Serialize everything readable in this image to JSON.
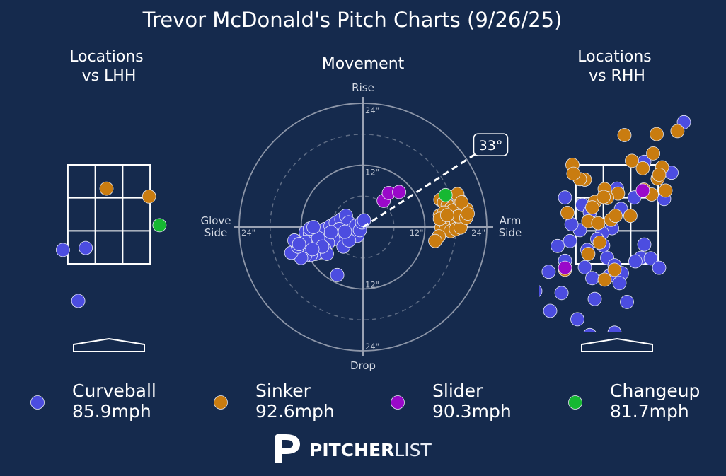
{
  "title": "Trevor McDonald's Pitch Charts (9/26/25)",
  "colors": {
    "background": "#152a4d",
    "curveball": "#4c4de0",
    "sinker": "#c97c10",
    "slider": "#9a09c9",
    "changeup": "#16b832",
    "grid": "#9aa2b3",
    "zone": "#ffffff"
  },
  "chart_data": [
    {
      "type": "scatter",
      "name": "locations-vs-lhh",
      "title": "Locations\nvs LHH",
      "series": [
        {
          "pitch": "Curveball",
          "points": [
            [
              -0.62,
              0.75
            ],
            [
              -0.93,
              1.78
            ],
            [
              -0.47,
              1.82
            ]
          ]
        },
        {
          "pitch": "Sinker",
          "points": [
            [
              -0.05,
              3.02
            ],
            [
              0.81,
              2.86
            ]
          ]
        },
        {
          "pitch": "Changeup",
          "points": [
            [
              1.02,
              2.28
            ]
          ]
        }
      ]
    },
    {
      "type": "scatter",
      "name": "movement",
      "title": "Movement",
      "axis_labels": {
        "top": "Rise",
        "bottom": "Drop",
        "left": "Glove\nSide",
        "right": "Arm\nSide"
      },
      "ring_labels": [
        "24\"",
        "12\"",
        "12\"",
        "24\"",
        "12\"",
        "24\"",
        "12\"",
        "24\""
      ],
      "arm_angle_label": "33°",
      "arm_angle_deg": 33,
      "rlim": 24,
      "series": [
        {
          "pitch": "Curveball",
          "points": [
            [
              -11.1,
              -1.0
            ],
            [
              -10.3,
              -1.3
            ],
            [
              -9.2,
              -1.5
            ],
            [
              -8.3,
              -1.5
            ],
            [
              -7.4,
              -0.4
            ],
            [
              -6.3,
              0.2
            ],
            [
              -5.3,
              0.8
            ],
            [
              -4.2,
              1.5
            ],
            [
              -3.3,
              2.2
            ],
            [
              -2.8,
              0.9
            ],
            [
              -2.1,
              -0.5
            ],
            [
              -1.3,
              0.3
            ],
            [
              -1.1,
              -1.7
            ],
            [
              -0.6,
              -0.6
            ],
            [
              -0.2,
              0.9
            ],
            [
              0.2,
              1.3
            ],
            [
              -5.0,
              -2.0
            ],
            [
              -5.8,
              -2.4
            ],
            [
              -6.8,
              -3.1
            ],
            [
              -7.5,
              -4.2
            ],
            [
              -8.3,
              -4.9
            ],
            [
              -9.2,
              -5.2
            ],
            [
              -10.1,
              -5.4
            ],
            [
              -11.2,
              -5.5
            ],
            [
              -12.0,
              -6.0
            ],
            [
              -13.9,
              -5.0
            ],
            [
              -12.6,
              -3.8
            ],
            [
              -13.3,
              -2.6
            ],
            [
              -11.0,
              -3.2
            ],
            [
              -9.4,
              -3.5
            ],
            [
              -8.7,
              -2.1
            ],
            [
              -10.3,
              -0.3
            ],
            [
              -7.0,
              -5.2
            ],
            [
              -5.0,
              -9.3
            ],
            [
              -3.8,
              -3.8
            ],
            [
              -2.7,
              -2.6
            ],
            [
              -4.6,
              -0.4
            ],
            [
              -3.5,
              -0.9
            ],
            [
              -11.2,
              -2.9
            ],
            [
              -7.9,
              -3.8
            ],
            [
              -9.8,
              -4.3
            ],
            [
              -6.2,
              -1.0
            ],
            [
              -9.6,
              0.0
            ],
            [
              -12.4,
              -3.3
            ]
          ]
        },
        {
          "pitch": "Sinker",
          "points": [
            [
              15.0,
              5.3
            ],
            [
              15.7,
              4.8
            ],
            [
              16.4,
              4.2
            ],
            [
              17.1,
              3.6
            ],
            [
              18.0,
              3.4
            ],
            [
              19.0,
              3.3
            ],
            [
              20.1,
              3.4
            ],
            [
              14.9,
              2.3
            ],
            [
              15.6,
              1.8
            ],
            [
              16.5,
              1.4
            ],
            [
              17.2,
              1.0
            ],
            [
              18.1,
              0.8
            ],
            [
              19.1,
              0.6
            ],
            [
              15.2,
              -0.1
            ],
            [
              16.0,
              -0.6
            ],
            [
              17.0,
              -0.8
            ],
            [
              18.0,
              -0.4
            ],
            [
              18.9,
              -0.1
            ],
            [
              14.7,
              -1.8
            ],
            [
              14.0,
              -2.7
            ],
            [
              17.4,
              3.2
            ],
            [
              18.7,
              5.3
            ],
            [
              18.3,
              6.4
            ],
            [
              15.7,
              2.8
            ],
            [
              18.5,
              2.1
            ],
            [
              20.0,
              1.8
            ],
            [
              14.9,
              1.6
            ],
            [
              19.1,
              4.8
            ],
            [
              20.3,
              2.6
            ],
            [
              16.3,
              2.3
            ]
          ]
        },
        {
          "pitch": "Slider",
          "points": [
            [
              4.0,
              5.1
            ],
            [
              5.0,
              6.6
            ],
            [
              7.0,
              6.8
            ]
          ]
        },
        {
          "pitch": "Changeup",
          "points": [
            [
              16.0,
              6.2
            ]
          ]
        }
      ]
    },
    {
      "type": "scatter",
      "name": "locations-vs-rhh",
      "title": "Locations\nvs RHH",
      "series": [
        {
          "pitch": "Curveball",
          "points": [
            [
              1.35,
              4.36
            ],
            [
              -1.05,
              2.84
            ],
            [
              -0.7,
              2.69
            ],
            [
              -0.55,
              2.54
            ],
            [
              0.0,
              3.02
            ],
            [
              0.35,
              2.84
            ],
            [
              0.95,
              2.81
            ],
            [
              1.1,
              3.34
            ],
            [
              0.55,
              3.56
            ],
            [
              0.08,
              2.61
            ],
            [
              -0.1,
              2.22
            ],
            [
              -0.3,
              2.12
            ],
            [
              -0.75,
              2.18
            ],
            [
              -0.95,
              1.96
            ],
            [
              -1.2,
              1.86
            ],
            [
              -0.6,
              1.78
            ],
            [
              -0.65,
              1.43
            ],
            [
              -0.2,
              1.62
            ],
            [
              -0.5,
              1.21
            ],
            [
              -0.15,
              1.26
            ],
            [
              0.1,
              1.31
            ],
            [
              -0.05,
              1.47
            ],
            [
              0.48,
              1.62
            ],
            [
              0.55,
              1.89
            ],
            [
              0.05,
              1.11
            ],
            [
              0.2,
              0.73
            ],
            [
              -0.45,
              0.79
            ],
            [
              -0.8,
              0.38
            ],
            [
              -0.55,
              0.06
            ],
            [
              -0.05,
              0.11
            ],
            [
              -1.38,
              1.34
            ],
            [
              0.37,
              1.55
            ],
            [
              -0.4,
              2.0
            ],
            [
              -1.05,
              1.56
            ],
            [
              0.68,
              1.61
            ],
            [
              -1.65,
              0.95
            ],
            [
              -1.35,
              0.55
            ],
            [
              -1.12,
              0.91
            ],
            [
              0.85,
              1.42
            ],
            [
              -0.28,
              1.87
            ],
            [
              -0.92,
              2.3
            ]
          ]
        },
        {
          "pitch": "Sinker",
          "points": [
            [
              0.15,
              4.1
            ],
            [
              1.22,
              4.18
            ],
            [
              0.3,
              3.58
            ],
            [
              0.73,
              3.73
            ],
            [
              0.91,
              3.45
            ],
            [
              0.82,
              3.22
            ],
            [
              0.98,
              2.98
            ],
            [
              0.54,
              3.0
            ],
            [
              -0.9,
              3.5
            ],
            [
              -0.65,
              3.2
            ],
            [
              -0.25,
              3.01
            ],
            [
              -0.45,
              2.75
            ],
            [
              -1.0,
              2.53
            ],
            [
              -0.58,
              2.36
            ],
            [
              -0.38,
              2.32
            ],
            [
              -0.12,
              2.39
            ],
            [
              0.02,
              2.92
            ],
            [
              -0.2,
              2.83
            ],
            [
              -0.5,
              2.64
            ],
            [
              -0.35,
              1.93
            ],
            [
              -0.58,
              1.7
            ],
            [
              -1.05,
              1.38
            ],
            [
              -0.05,
              1.38
            ],
            [
              -0.25,
              1.18
            ],
            [
              -0.75,
              3.21
            ],
            [
              0.27,
              2.47
            ],
            [
              -0.03,
              2.47
            ],
            [
              0.7,
              2.9
            ],
            [
              0.52,
              3.43
            ],
            [
              -0.27,
              2.85
            ],
            [
              -0.88,
              3.32
            ],
            [
              0.8,
              4.12
            ],
            [
              0.85,
              3.3
            ]
          ]
        },
        {
          "pitch": "Slider",
          "points": [
            [
              -1.75,
              1.01
            ],
            [
              -1.85,
              0.86
            ],
            [
              -1.05,
              1.42
            ],
            [
              0.52,
              2.98
            ]
          ]
        }
      ]
    }
  ],
  "zone": {
    "x": [
      -0.83,
      0.83
    ],
    "z": [
      1.5,
      3.5
    ]
  },
  "legend": [
    {
      "pitch": "Curveball",
      "speed": "85.9mph",
      "color": "#4c4de0"
    },
    {
      "pitch": "Sinker",
      "speed": "92.6mph",
      "color": "#c97c10"
    },
    {
      "pitch": "Slider",
      "speed": "90.3mph",
      "color": "#9a09c9"
    },
    {
      "pitch": "Changeup",
      "speed": "81.7mph",
      "color": "#16b832"
    }
  ],
  "logo": {
    "word_bold": "PITCHER",
    "word_light": "LIST"
  }
}
